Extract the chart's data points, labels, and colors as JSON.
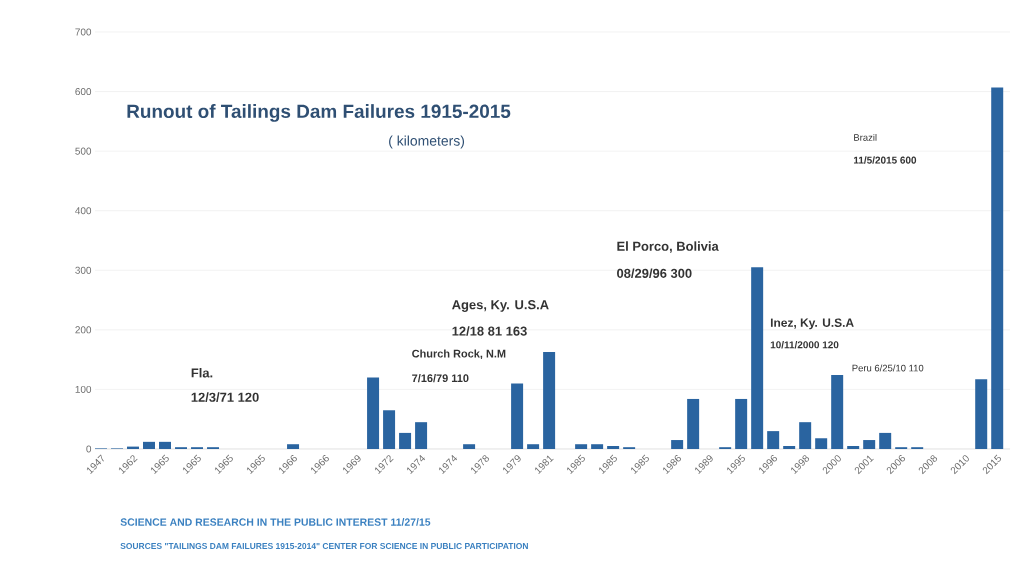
{
  "chart_data": {
    "type": "bar",
    "title": "Runout of Tailings Dam Failures 1915-2015",
    "subtitle": "( kilometers)",
    "categories": [
      "1947",
      null,
      "1962",
      null,
      "1965",
      null,
      "1965",
      null,
      "1965",
      null,
      "1965",
      null,
      "1966",
      null,
      "1966",
      null,
      "1969",
      null,
      "1972",
      null,
      "1974",
      null,
      "1974",
      null,
      "1978",
      null,
      "1979",
      null,
      "1981",
      null,
      "1985",
      null,
      "1985",
      null,
      "1985",
      null,
      "1986",
      null,
      "1989",
      null,
      "1995",
      null,
      "1996",
      null,
      "1998",
      null,
      "2000",
      null,
      "2001",
      null,
      "2006",
      null,
      "2008",
      null,
      "2010",
      null,
      "2015"
    ],
    "values": [
      1,
      1,
      4,
      12,
      12,
      3,
      3,
      3,
      0,
      0,
      0,
      0,
      8,
      0,
      0,
      0,
      0,
      120,
      65,
      27,
      45,
      0,
      0,
      8,
      0,
      0,
      110,
      8,
      163,
      0,
      8,
      8,
      5,
      3,
      0,
      0,
      15,
      84,
      0,
      3,
      84,
      305,
      30,
      5,
      45,
      18,
      124,
      5,
      15,
      27,
      3,
      3,
      0,
      0,
      0,
      117,
      607
    ],
    "color": "#2a64a0",
    "ylim": [
      0,
      700
    ],
    "yticks": [
      0,
      100,
      200,
      300,
      400,
      500,
      600,
      700
    ],
    "grid": "y",
    "annotations": [
      "Fla.",
      "12/3/71 120",
      "Church Rock, N.M",
      "7/16/79 110",
      "Ages, Ky. U.S.A",
      "12/18 81 163",
      "El Porco, Bolivia",
      "08/29/96  300",
      "Inez, Ky. U.S.A",
      "10/11/2000 120",
      "Peru 6/25/10 110",
      "Brazil",
      "11/5/2015 600",
      "SCIENCE AND RESEARCH IN THE PUBLIC INTEREST 11/27/15",
      "SOURCES  \"TAILINGS DAM FAILURES 1915-2014\" CENTER FOR SCIENCE IN PUBLIC PARTICIPATION"
    ]
  }
}
